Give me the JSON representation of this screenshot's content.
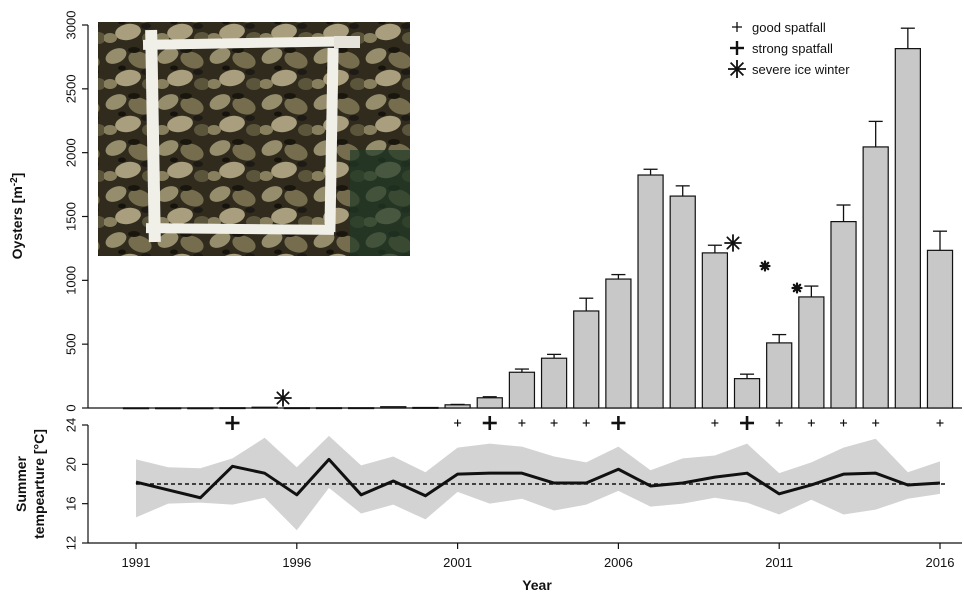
{
  "chart_data": [
    {
      "type": "bar",
      "ylabel": "Oysters [m⁻²]",
      "ylabel_parts": [
        "Oysters [m",
        "-2",
        "]"
      ],
      "ylim": [
        0,
        3000
      ],
      "yticks": [
        0,
        500,
        1000,
        1500,
        2000,
        2500,
        3000
      ],
      "ytick_labels": [
        "0",
        "500",
        "1000",
        "1500",
        "2000",
        "2500",
        "3000"
      ],
      "categories": [
        1991,
        1992,
        1993,
        1994,
        1995,
        1996,
        1997,
        1998,
        1999,
        2000,
        2001,
        2002,
        2003,
        2004,
        2005,
        2006,
        2007,
        2008,
        2009,
        2010,
        2011,
        2012,
        2013,
        2014,
        2015,
        2016
      ],
      "values": [
        1,
        1,
        1,
        2,
        6,
        2,
        2,
        2,
        10,
        4,
        25,
        80,
        280,
        390,
        760,
        1010,
        1825,
        1660,
        1215,
        230,
        510,
        870,
        1460,
        2045,
        2815,
        1235
      ],
      "errors": [
        0,
        0,
        0,
        0,
        0,
        0,
        0,
        0,
        0,
        0,
        3,
        8,
        25,
        30,
        100,
        35,
        45,
        80,
        60,
        35,
        65,
        85,
        130,
        200,
        160,
        150
      ],
      "legend": {
        "position": "top-right",
        "items": [
          {
            "symbol": "small-plus",
            "label": "good spatfall"
          },
          {
            "symbol": "large-plus",
            "label": "strong spatfall"
          },
          {
            "symbol": "asterisk",
            "label": "severe ice winter"
          }
        ]
      },
      "spatfall_good": [
        2001,
        2003,
        2004,
        2005,
        2009,
        2011,
        2012,
        2013,
        2014,
        2016
      ],
      "spatfall_strong": [
        1994,
        2002,
        2006,
        2010
      ],
      "ice_winter_large": [
        1996,
        2009
      ],
      "ice_winter_small": [
        2010,
        2011
      ],
      "inset_photo": "oyster-bed-quadrat-photo"
    },
    {
      "type": "line",
      "ylabel_lines": [
        "Summer",
        "tempearture [°C]"
      ],
      "xlabel": "Year",
      "ylim": [
        12,
        24
      ],
      "yticks": [
        12,
        16,
        20,
        24
      ],
      "ytick_labels": [
        "12",
        "16",
        "20",
        "24"
      ],
      "xticks": [
        1991,
        1996,
        2001,
        2006,
        2011,
        2016
      ],
      "xtick_labels": [
        "1991",
        "1996",
        "2001",
        "2006",
        "2011",
        "2016"
      ],
      "x": [
        1991,
        1992,
        1993,
        1994,
        1995,
        1996,
        1997,
        1998,
        1999,
        2000,
        2001,
        2002,
        2003,
        2004,
        2005,
        2006,
        2007,
        2008,
        2009,
        2010,
        2011,
        2012,
        2013,
        2014,
        2015,
        2016
      ],
      "mean": [
        18.2,
        17.4,
        16.6,
        19.8,
        19.1,
        16.9,
        20.5,
        16.9,
        18.3,
        16.8,
        19.0,
        19.1,
        19.1,
        18.1,
        18.1,
        19.5,
        17.8,
        18.1,
        18.7,
        19.1,
        17.0,
        17.9,
        19.0,
        19.1,
        17.9,
        18.1
      ],
      "upper": [
        20.5,
        19.7,
        19.6,
        20.6,
        22.7,
        19.7,
        22.9,
        19.9,
        20.8,
        19.2,
        21.7,
        22.1,
        21.8,
        20.8,
        20.2,
        21.8,
        19.4,
        20.6,
        20.9,
        22.1,
        19.1,
        20.2,
        21.7,
        22.6,
        19.2,
        20.3
      ],
      "lower": [
        14.6,
        16.0,
        16.1,
        15.9,
        16.6,
        13.3,
        17.6,
        15.0,
        15.9,
        14.4,
        17.2,
        16.0,
        16.5,
        15.3,
        15.9,
        17.3,
        15.7,
        16.0,
        16.6,
        16.1,
        14.9,
        16.4,
        14.9,
        15.4,
        16.5,
        17.0
      ],
      "reference_line": 18.0,
      "reference_style": "dashed",
      "band_color": "#d3d3d3"
    }
  ]
}
